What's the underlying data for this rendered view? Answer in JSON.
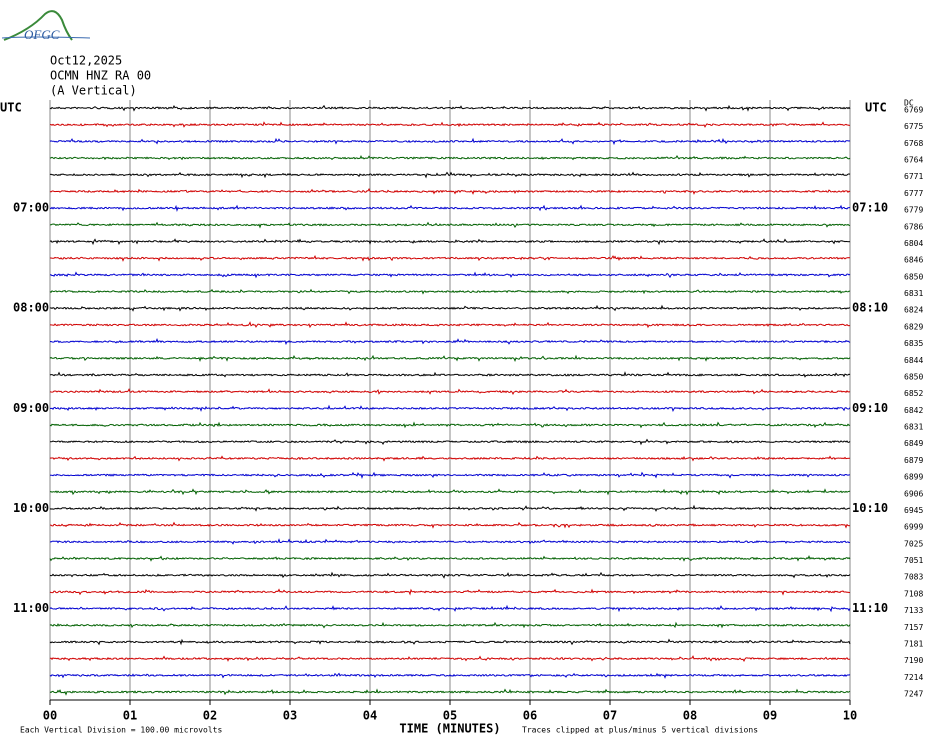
{
  "chart_data": {
    "type": "helicorder",
    "logo": "OFGC",
    "date": "Oct12,2025",
    "station": "OCMN HNZ RA 00",
    "component": "(A Vertical)",
    "dc_label": "DC",
    "xlabel": "TIME (MINUTES)",
    "scale_note": "Each Vertical Division =  100.00 microvolts",
    "clip_note": "Traces clipped at plus/minus 5 vertical divisions",
    "xlim": [
      0,
      10
    ],
    "xticks": [
      {
        "value": 0,
        "label": "00"
      },
      {
        "value": 1,
        "label": "01"
      },
      {
        "value": 2,
        "label": "02"
      },
      {
        "value": 3,
        "label": "03"
      },
      {
        "value": 4,
        "label": "04"
      },
      {
        "value": 5,
        "label": "05"
      },
      {
        "value": 6,
        "label": "06"
      },
      {
        "value": 7,
        "label": "07"
      },
      {
        "value": 8,
        "label": "08"
      },
      {
        "value": 9,
        "label": "09"
      },
      {
        "value": 10,
        "label": "10"
      }
    ],
    "trace_colors": [
      "#000000",
      "#d00000",
      "#0000d0",
      "#006000"
    ],
    "left_labels": [
      "UTC",
      null,
      null,
      null,
      null,
      null,
      "07:00",
      null,
      null,
      null,
      null,
      null,
      "08:00",
      null,
      null,
      null,
      null,
      null,
      "09:00",
      null,
      null,
      null,
      null,
      null,
      "10:00",
      null,
      null,
      null,
      null,
      null,
      "11:00",
      null,
      null,
      null,
      null,
      null
    ],
    "right_labels": [
      "UTC",
      null,
      null,
      null,
      null,
      null,
      "07:10",
      null,
      null,
      null,
      null,
      null,
      "08:10",
      null,
      null,
      null,
      null,
      null,
      "09:10",
      null,
      null,
      null,
      null,
      null,
      "10:10",
      null,
      null,
      null,
      null,
      null,
      "11:10",
      null,
      null,
      null,
      null,
      null
    ],
    "dc_values": [
      6769,
      6775,
      6768,
      6764,
      6771,
      6777,
      6779,
      6786,
      6804,
      6846,
      6850,
      6831,
      6824,
      6829,
      6835,
      6844,
      6850,
      6852,
      6842,
      6831,
      6849,
      6879,
      6899,
      6906,
      6945,
      6999,
      7025,
      7051,
      7083,
      7108,
      7133,
      7157,
      7181,
      7190,
      7214,
      7247
    ]
  }
}
